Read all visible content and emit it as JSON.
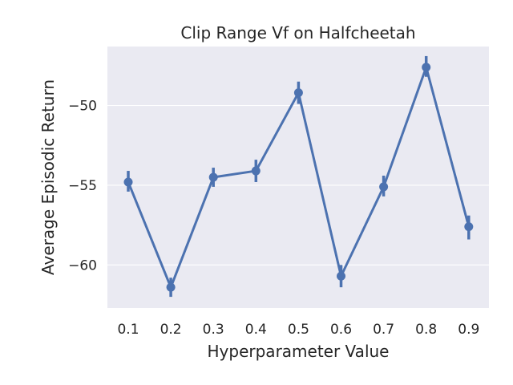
{
  "chart_data": {
    "type": "line",
    "title": "Clip Range Vf on Halfcheetah",
    "xlabel": "Hyperparameter Value",
    "ylabel": "Average Episodic Return",
    "categories": [
      "0.1",
      "0.2",
      "0.3",
      "0.4",
      "0.5",
      "0.6",
      "0.7",
      "0.8",
      "0.9"
    ],
    "series": [
      {
        "values": [
          -54.8,
          -61.4,
          -54.5,
          -54.1,
          -49.2,
          -60.7,
          -55.1,
          -47.6,
          -57.6
        ],
        "ci_low": [
          -55.4,
          -62.0,
          -55.1,
          -54.8,
          -49.9,
          -61.4,
          -55.7,
          -48.2,
          -58.4
        ],
        "ci_high": [
          -54.1,
          -60.8,
          -53.9,
          -53.4,
          -48.5,
          -60.0,
          -54.4,
          -46.9,
          -56.9
        ]
      }
    ],
    "yticks": [
      -50,
      -55,
      -60
    ],
    "ytick_labels": [
      "−50",
      "−55",
      "−60"
    ],
    "ylim": [
      -62.7,
      -46.3
    ],
    "grid": true,
    "colors": {
      "line": "#4c72b0",
      "background": "#eaeaf2",
      "grid": "#ffffff",
      "text": "#262626"
    }
  }
}
